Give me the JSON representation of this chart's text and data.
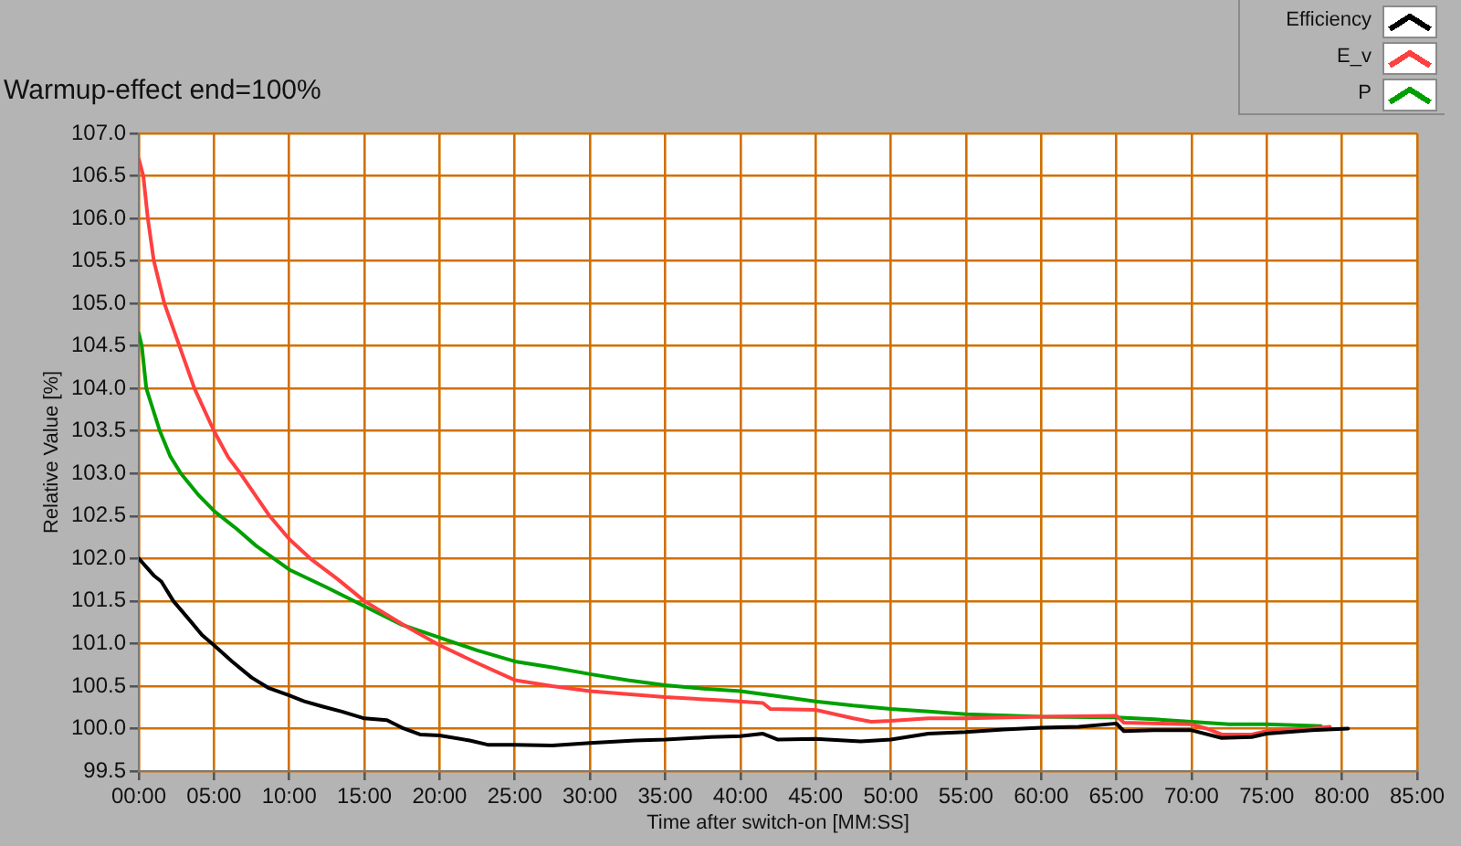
{
  "chart_data": {
    "type": "line",
    "title": "Warmup-effect end=100%",
    "xlabel": "Time after switch-on [MM:SS]",
    "ylabel": "Relative Value [%]",
    "xlim": [
      0,
      85
    ],
    "ylim": [
      99.5,
      107
    ],
    "xticks": [
      {
        "value": 0,
        "label": "00:00"
      },
      {
        "value": 5,
        "label": "05:00"
      },
      {
        "value": 10,
        "label": "10:00"
      },
      {
        "value": 15,
        "label": "15:00"
      },
      {
        "value": 20,
        "label": "20:00"
      },
      {
        "value": 25,
        "label": "25:00"
      },
      {
        "value": 30,
        "label": "30:00"
      },
      {
        "value": 35,
        "label": "35:00"
      },
      {
        "value": 40,
        "label": "40:00"
      },
      {
        "value": 45,
        "label": "45:00"
      },
      {
        "value": 50,
        "label": "50:00"
      },
      {
        "value": 55,
        "label": "55:00"
      },
      {
        "value": 60,
        "label": "60:00"
      },
      {
        "value": 65,
        "label": "65:00"
      },
      {
        "value": 70,
        "label": "70:00"
      },
      {
        "value": 75,
        "label": "75:00"
      },
      {
        "value": 80,
        "label": "80:00"
      },
      {
        "value": 85,
        "label": "85:00"
      }
    ],
    "yticks": [
      99.5,
      {
        "value": 100,
        "label": "100.0"
      },
      100.5,
      {
        "value": 101,
        "label": "101.0"
      },
      101.5,
      {
        "value": 102,
        "label": "102.0"
      },
      102.5,
      {
        "value": 103,
        "label": "103.0"
      },
      103.5,
      {
        "value": 104,
        "label": "104.0"
      },
      104.5,
      {
        "value": 105,
        "label": "105.0"
      },
      105.5,
      {
        "value": 106,
        "label": "106.0"
      },
      106.5,
      {
        "value": 107,
        "label": "107.0"
      }
    ],
    "grid": true,
    "legend": "top right",
    "marker": "none",
    "line_style": "solid",
    "series": [
      {
        "name": "Efficiency",
        "color": "#000000",
        "x": [
          0,
          0.5,
          1,
          1.5,
          2.3,
          3.5,
          4.2,
          5,
          6.2,
          7.5,
          8.6,
          10,
          11,
          12.2,
          13.5,
          15,
          16.5,
          17.5,
          18.7,
          20,
          22,
          23.2,
          25,
          27.5,
          30,
          33,
          35,
          38,
          40,
          41.5,
          42.5,
          45,
          48,
          50,
          52.5,
          55,
          57.5,
          60,
          62.5,
          65,
          65.5,
          67.5,
          70,
          72,
          74,
          75,
          78,
          80.4
        ],
        "values": [
          102.0,
          101.9,
          101.8,
          101.73,
          101.5,
          101.25,
          101.1,
          100.98,
          100.79,
          100.6,
          100.48,
          100.39,
          100.32,
          100.26,
          100.2,
          100.12,
          100.1,
          100.01,
          99.93,
          99.92,
          99.86,
          99.81,
          99.81,
          99.8,
          99.83,
          99.86,
          99.87,
          99.9,
          99.91,
          99.94,
          99.87,
          99.88,
          99.85,
          99.87,
          99.94,
          99.96,
          99.99,
          100.01,
          100.02,
          100.06,
          99.97,
          99.98,
          99.98,
          99.89,
          99.9,
          99.94,
          99.98,
          100.0
        ]
      },
      {
        "name": "E_v",
        "color": "#ff4040",
        "x": [
          0,
          0.3,
          0.6,
          1,
          1.7,
          2.7,
          3.7,
          5,
          5.95,
          6.76,
          8.7,
          10,
          11.4,
          13.2,
          15,
          17.5,
          20,
          22.5,
          25,
          27.5,
          30,
          35,
          39,
          41.5,
          42,
          45,
          47.5,
          48.7,
          50,
          52.5,
          55,
          60,
          65,
          65.5,
          70,
          71,
          72,
          74,
          75,
          78,
          79.2
        ],
        "values": [
          106.7,
          106.5,
          106.0,
          105.5,
          105.0,
          104.5,
          104.0,
          103.5,
          103.19,
          103.0,
          102.5,
          102.23,
          102.0,
          101.76,
          101.5,
          101.23,
          100.98,
          100.77,
          100.57,
          100.5,
          100.44,
          100.37,
          100.33,
          100.3,
          100.23,
          100.22,
          100.12,
          100.08,
          100.09,
          100.12,
          100.12,
          100.14,
          100.15,
          100.07,
          100.05,
          100.0,
          99.93,
          99.93,
          99.97,
          100.0,
          100.02
        ]
      },
      {
        "name": "P",
        "color": "#00a000",
        "x": [
          0,
          0.2,
          0.5,
          1.4,
          2.1,
          2.8,
          4,
          5,
          6.5,
          7.8,
          10,
          12.5,
          15,
          17.5,
          20,
          22.5,
          25,
          27.5,
          30,
          32.5,
          35,
          37.5,
          40,
          42.5,
          45,
          47.5,
          50,
          52.5,
          55,
          60,
          65,
          67.5,
          70,
          72.5,
          75,
          78.6
        ],
        "values": [
          104.65,
          104.5,
          104.0,
          103.5,
          103.2,
          103.0,
          102.74,
          102.56,
          102.35,
          102.15,
          101.87,
          101.66,
          101.44,
          101.22,
          101.07,
          100.92,
          100.79,
          100.72,
          100.64,
          100.57,
          100.51,
          100.47,
          100.44,
          100.38,
          100.32,
          100.27,
          100.23,
          100.2,
          100.17,
          100.14,
          100.13,
          100.11,
          100.08,
          100.05,
          100.05,
          100.03
        ]
      }
    ]
  }
}
